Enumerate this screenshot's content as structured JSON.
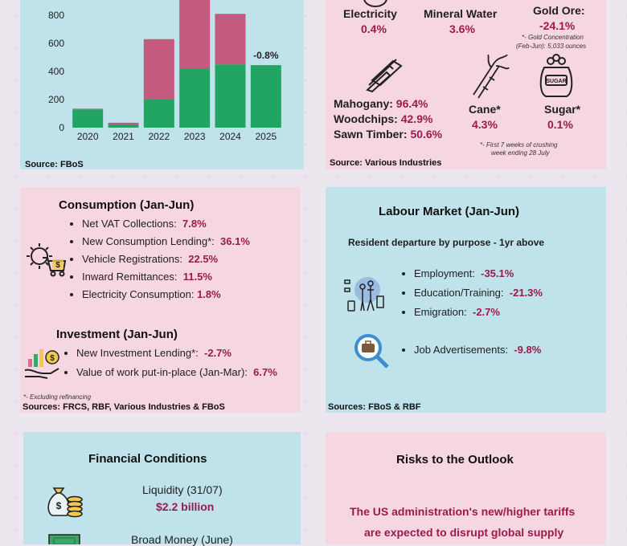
{
  "chart_data": {
    "type": "bar",
    "categories": [
      "2020",
      "2021",
      "2022",
      "2023",
      "2024",
      "2025"
    ],
    "series": [
      {
        "values": [
          130,
          20,
          200,
          420,
          450,
          445
        ],
        "color": "#22a463"
      },
      {
        "values": [
          5,
          15,
          430,
          570,
          360,
          0
        ],
        "color": "#c45b7e"
      }
    ],
    "yticks": [
      0,
      200,
      400,
      600,
      800
    ],
    "ylim": [
      0,
      880
    ],
    "annotation": {
      "category": "2025",
      "text": "-0.8%"
    }
  },
  "top_left": {
    "source": "Source: FBoS"
  },
  "top_right": {
    "electricity": {
      "label": "Electricity",
      "value": "0.4%"
    },
    "mineral_water": {
      "label": "Mineral Water",
      "value": "3.6%"
    },
    "gold": {
      "label": "Gold Ore:",
      "value": "-24.1%",
      "note1": "*- Gold Concentration",
      "note2": "(Feb-Jun): 5,033 ounces"
    },
    "mahogany": {
      "label": "Mahogany:",
      "value": "96.4%"
    },
    "woodchips": {
      "label": "Woodchips:",
      "value": "42.9%"
    },
    "sawn_timber": {
      "label": "Sawn Timber:",
      "value": "50.6%"
    },
    "cane": {
      "label": "Cane*",
      "value": "4.3%"
    },
    "sugar": {
      "label": "Sugar*",
      "value": "0.1%",
      "icon_text": "SUGAR"
    },
    "crush_note1": "*- First 7 weeks of crushing",
    "crush_note2": "week ending 28 July",
    "source": "Source: Various Industries"
  },
  "consumption": {
    "title": "Consumption (Jan-Jun)",
    "items": [
      {
        "label": "Net VAT Collections:",
        "value": "7.8%"
      },
      {
        "label": "New Consumption Lending*:",
        "value": "36.1%"
      },
      {
        "label": "Vehicle Registrations:",
        "value": "22.5%"
      },
      {
        "label": "Inward Remittances:",
        "value": "11.5%"
      },
      {
        "label": "Electricity Consumption:",
        "value": "1.8%"
      }
    ]
  },
  "investment": {
    "title": "Investment (Jan-Jun)",
    "items": [
      {
        "label": "New Investment Lending*:",
        "value": "-2.7%"
      },
      {
        "label": "Value of work put-in-place (Jan-Mar):",
        "value": "6.7%"
      }
    ],
    "footnote": "*- Excluding refinancing",
    "source": "Sources: FRCS, RBF, Various Industries & FBoS"
  },
  "labour": {
    "title": "Labour Market (Jan-Jun)",
    "subtitle": "Resident departure by purpose - 1yr above",
    "items": [
      {
        "label": "Employment:",
        "value": "-35.1%"
      },
      {
        "label": "Education/Training:",
        "value": "-21.3%"
      },
      {
        "label": "Emigration:",
        "value": "-2.7%"
      }
    ],
    "job": {
      "label": "Job Advertisements:",
      "value": "-9.8%"
    },
    "source": "Sources: FBoS & RBF"
  },
  "financial": {
    "title": "Financial Conditions",
    "liquidity_label": "Liquidity (31/07)",
    "liquidity_value": "$2.2 billion",
    "broad_money_label": "Broad Money (June)"
  },
  "risks": {
    "title": "Risks to the Outlook",
    "line1": "The US administration's new/higher tariffs",
    "line2": "are expected to disrupt global supply"
  }
}
